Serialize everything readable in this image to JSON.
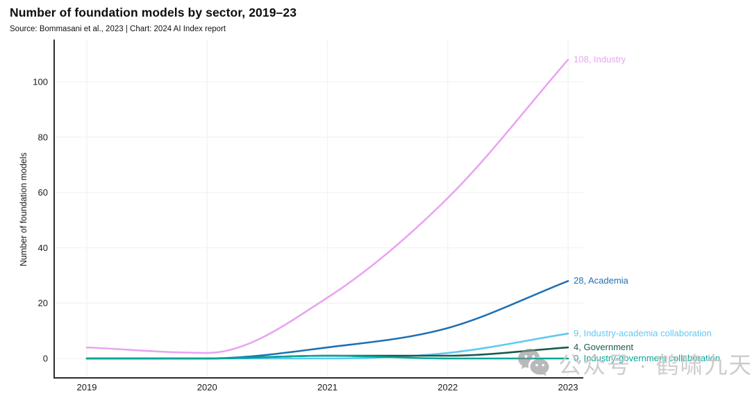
{
  "header": {
    "title": "Number of foundation models by sector, 2019–23",
    "subtitle": "Source: Bommasani et al., 2023 | Chart: 2024 AI Index report"
  },
  "chart_data": {
    "type": "line",
    "title": "Number of foundation models by sector, 2019–23",
    "x": [
      2019,
      2020,
      2021,
      2022,
      2023
    ],
    "series": [
      {
        "name": "Industry",
        "values": [
          4,
          2,
          22,
          58,
          108
        ],
        "color": "#e9a4f2",
        "end_label": "108, Industry"
      },
      {
        "name": "Academia",
        "values": [
          0,
          0,
          4,
          11,
          28
        ],
        "color": "#1f70b4",
        "end_label": "28, Academia"
      },
      {
        "name": "Industry-academia collaboration",
        "values": [
          0,
          0,
          0,
          2,
          9
        ],
        "color": "#5fc9f1",
        "end_label": "9, Industry-academia collaboration"
      },
      {
        "name": "Government",
        "values": [
          0,
          0,
          1,
          1,
          4
        ],
        "color": "#175a4d",
        "end_label": "4, Government"
      },
      {
        "name": "Industry-government collaboration",
        "values": [
          0,
          0,
          1,
          0,
          0
        ],
        "color": "#00a698",
        "end_label": "0, Industry-government collaboration"
      }
    ],
    "xlabel": "",
    "ylabel": "Number of foundation models",
    "yticks": [
      0,
      20,
      40,
      60,
      80,
      100
    ],
    "ylim": [
      0,
      112
    ],
    "grid": true,
    "legend_position": "end-of-line-labels"
  },
  "watermark": {
    "icon": "wechat-icon",
    "text": "公众号 · 鹤啸九天"
  }
}
